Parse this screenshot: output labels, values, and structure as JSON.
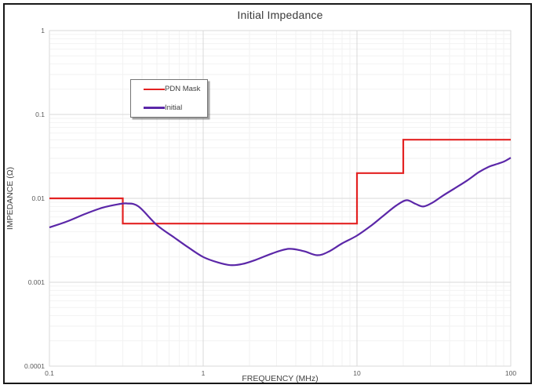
{
  "chart_data": {
    "type": "line",
    "title": "Initial Impedance",
    "xlabel": "FREQUENCY (MHz)",
    "ylabel": "IMPEDANCE (Ω)",
    "x_scale": "log",
    "y_scale": "log",
    "xlim": [
      0.1,
      100
    ],
    "ylim": [
      0.0001,
      1
    ],
    "x_tick_values": [
      0.1,
      1,
      10,
      100
    ],
    "x_tick_labels": [
      "0.1",
      "1",
      "10",
      "100"
    ],
    "y_tick_values": [
      1,
      0.1,
      0.01,
      0.001,
      0.0001
    ],
    "y_tick_labels": [
      "1",
      "0.1",
      "0.01",
      "0.001",
      "0.0001"
    ],
    "grid": {
      "major": true,
      "minor": true
    },
    "legend": {
      "position": "inside-top-left",
      "entries": [
        "PDN Mask",
        "Initial"
      ]
    },
    "series": [
      {
        "name": "PDN Mask",
        "color": "#e32222",
        "line_style": "step",
        "points": [
          [
            0.1,
            0.01
          ],
          [
            0.3,
            0.01
          ],
          [
            0.3,
            0.005
          ],
          [
            10,
            0.005
          ],
          [
            10,
            0.02
          ],
          [
            20,
            0.02
          ],
          [
            20,
            0.05
          ],
          [
            100,
            0.05
          ]
        ]
      },
      {
        "name": "Initial",
        "color": "#5b27a8",
        "line_style": "smooth",
        "points": [
          [
            0.1,
            0.0045
          ],
          [
            0.13,
            0.0053
          ],
          [
            0.17,
            0.0065
          ],
          [
            0.22,
            0.0077
          ],
          [
            0.28,
            0.0085
          ],
          [
            0.32,
            0.0087
          ],
          [
            0.38,
            0.008
          ],
          [
            0.5,
            0.0048
          ],
          [
            0.65,
            0.0034
          ],
          [
            0.8,
            0.0026
          ],
          [
            1.0,
            0.002
          ],
          [
            1.25,
            0.00172
          ],
          [
            1.5,
            0.0016
          ],
          [
            1.8,
            0.00165
          ],
          [
            2.2,
            0.00185
          ],
          [
            2.8,
            0.0022
          ],
          [
            3.6,
            0.0025
          ],
          [
            4.5,
            0.00235
          ],
          [
            5.5,
            0.0021
          ],
          [
            6.5,
            0.0023
          ],
          [
            8,
            0.0029
          ],
          [
            10,
            0.0036
          ],
          [
            12.5,
            0.0048
          ],
          [
            15,
            0.0063
          ],
          [
            18,
            0.0082
          ],
          [
            21,
            0.0095
          ],
          [
            24,
            0.0086
          ],
          [
            27,
            0.008
          ],
          [
            31,
            0.0089
          ],
          [
            36,
            0.0107
          ],
          [
            43,
            0.0131
          ],
          [
            52,
            0.0163
          ],
          [
            62,
            0.0205
          ],
          [
            72,
            0.0238
          ],
          [
            82,
            0.0258
          ],
          [
            91,
            0.0277
          ],
          [
            100,
            0.0305
          ]
        ]
      }
    ],
    "colors": {
      "grid_major": "#d9d9d9",
      "grid_minor": "#f2f2f2",
      "plot_border": "#d9d9d9",
      "title_text": "#3a3a3a",
      "tick_text": "#595959",
      "axis_label_text": "#404040",
      "frame_border": "#181818"
    }
  }
}
